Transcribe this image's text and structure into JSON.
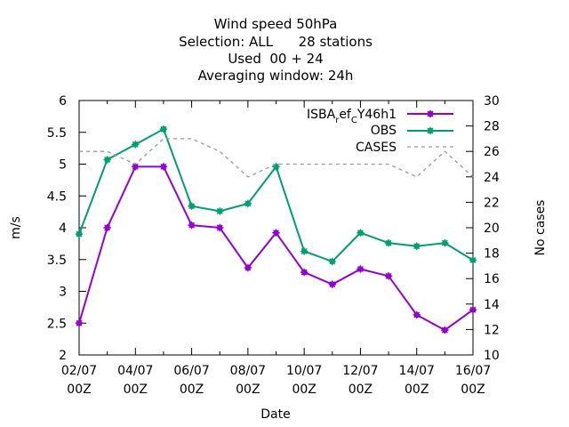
{
  "chart_data": {
    "type": "line",
    "title_lines": [
      "Wind speed 50hPa",
      "Selection: ALL      28 stations",
      "Used  00 + 24",
      "Averaging window: 24h"
    ],
    "xlabel": "Date",
    "ylabel": "m/s",
    "y2label": "No cases",
    "ylim": [
      2,
      6
    ],
    "y2lim": [
      10,
      30
    ],
    "yticks": [
      "2",
      "2.5",
      "3",
      "3.5",
      "4",
      "4.5",
      "5",
      "5.5",
      "6"
    ],
    "y2ticks": [
      "10",
      "12",
      "14",
      "16",
      "18",
      "20",
      "22",
      "24",
      "26",
      "28",
      "30"
    ],
    "x": [
      "02/07 00Z",
      "03/07 00Z",
      "04/07 00Z",
      "05/07 00Z",
      "06/07 00Z",
      "07/07 00Z",
      "08/07 00Z",
      "09/07 00Z",
      "10/07 00Z",
      "11/07 00Z",
      "12/07 00Z",
      "13/07 00Z",
      "14/07 00Z",
      "15/07 00Z",
      "16/07 00Z"
    ],
    "xticks": [
      {
        "index": 0,
        "line1": "02/07",
        "line2": "00Z"
      },
      {
        "index": 2,
        "line1": "04/07",
        "line2": "00Z"
      },
      {
        "index": 4,
        "line1": "06/07",
        "line2": "00Z"
      },
      {
        "index": 6,
        "line1": "08/07",
        "line2": "00Z"
      },
      {
        "index": 8,
        "line1": "10/07",
        "line2": "00Z"
      },
      {
        "index": 10,
        "line1": "12/07",
        "line2": "00Z"
      },
      {
        "index": 12,
        "line1": "14/07",
        "line2": "00Z"
      },
      {
        "index": 14,
        "line1": "16/07",
        "line2": "00Z"
      }
    ],
    "legend_position": "top-right",
    "grid": false,
    "series": [
      {
        "name": "ISBA_ref_CY46h1",
        "legend_parts": {
          "main": "ISBA",
          "sub1": "r",
          "mid": "ef",
          "sub2": "C",
          "tail": "Y46h1"
        },
        "axis": "y",
        "color": "#9400d3",
        "style": "solid-marker",
        "values": [
          2.5,
          4.0,
          4.96,
          4.96,
          4.04,
          4.0,
          3.37,
          3.92,
          3.3,
          3.11,
          3.35,
          3.24,
          2.63,
          2.39,
          2.71
        ]
      },
      {
        "name": "OBS",
        "axis": "y",
        "color": "#009e73",
        "style": "solid-marker",
        "values": [
          3.9,
          5.07,
          5.31,
          5.55,
          4.34,
          4.26,
          4.38,
          4.96,
          3.63,
          3.47,
          3.92,
          3.76,
          3.71,
          3.76,
          3.49
        ]
      },
      {
        "name": "CASES",
        "axis": "y2",
        "color": "#999999",
        "style": "dashed",
        "values": [
          26,
          26,
          25,
          27,
          27,
          26,
          24,
          25,
          25,
          25,
          25,
          25,
          24,
          26,
          24
        ]
      }
    ]
  }
}
